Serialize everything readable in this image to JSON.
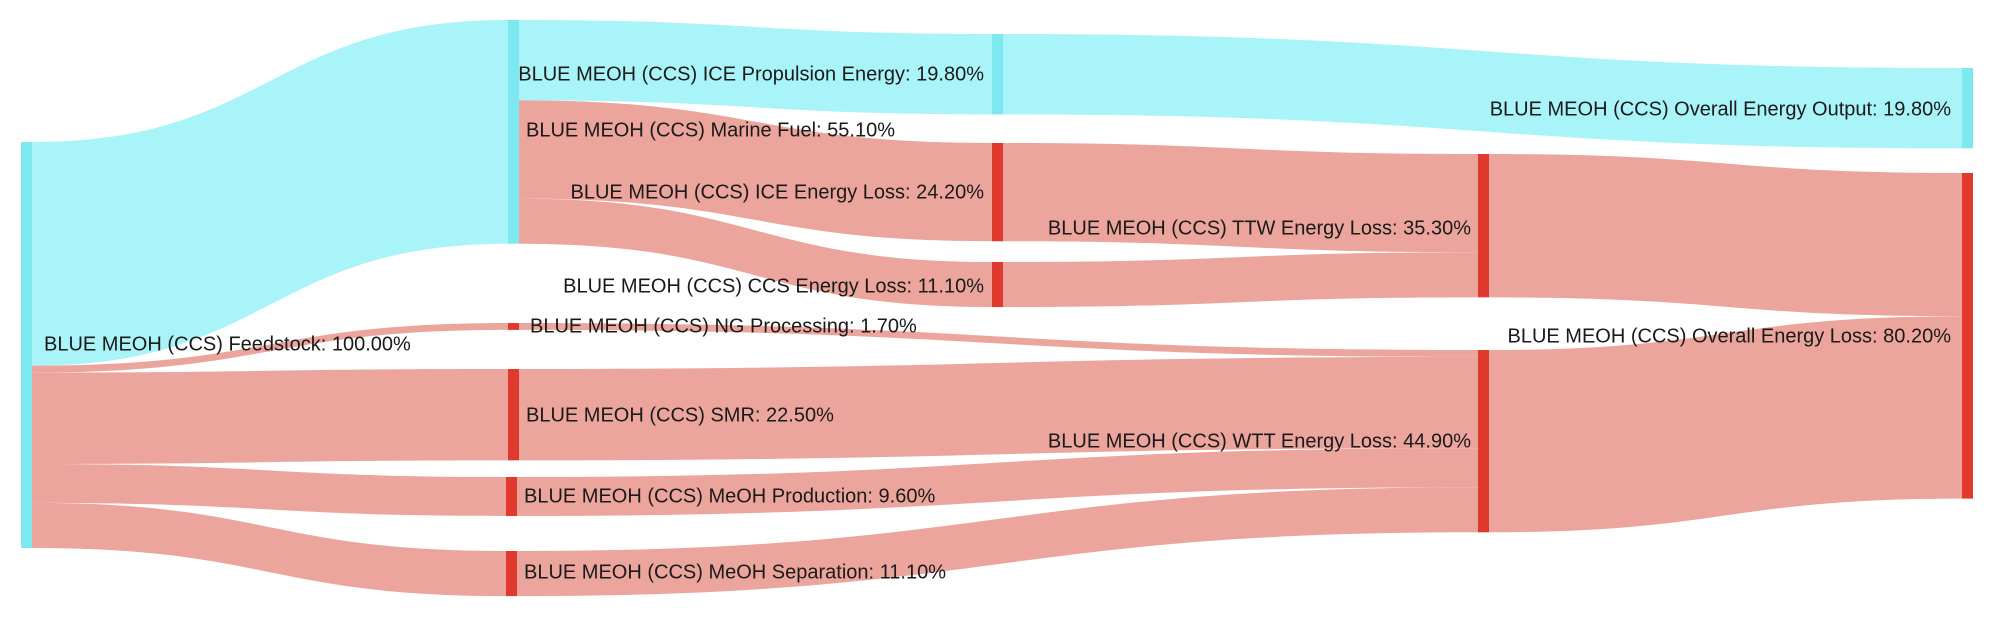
{
  "chart_data": {
    "type": "sankey",
    "title": "",
    "unit": "%",
    "colors": {
      "output_node": "#7ee8f1",
      "output_link": "#a8f4f8",
      "loss_node": "#e03a2e",
      "loss_link": "#eca59d"
    },
    "nodes": [
      {
        "id": "feedstock",
        "name": "BLUE MEOH (CCS) Feedstock",
        "value": 100.0,
        "kind": "output",
        "label": "BLUE MEOH (CCS) Feedstock: 100.00%"
      },
      {
        "id": "marine_fuel",
        "name": "BLUE MEOH (CCS) Marine Fuel",
        "value": 55.1,
        "kind": "output",
        "label": "BLUE MEOH (CCS) Marine Fuel: 55.10%"
      },
      {
        "id": "ccs_loss",
        "name": "BLUE MEOH (CCS) CCS Energy Loss",
        "value": 11.1,
        "kind": "loss",
        "label": "BLUE MEOH (CCS) CCS Energy Loss: 11.10%"
      },
      {
        "id": "ng_processing",
        "name": "BLUE MEOH (CCS) NG Processing",
        "value": 1.7,
        "kind": "loss",
        "label": "BLUE MEOH (CCS) NG Processing: 1.70%"
      },
      {
        "id": "smr",
        "name": "BLUE MEOH (CCS) SMR",
        "value": 22.5,
        "kind": "loss",
        "label": "BLUE MEOH (CCS) SMR: 22.50%"
      },
      {
        "id": "meoh_production",
        "name": "BLUE MEOH (CCS) MeOH Production",
        "value": 9.6,
        "kind": "loss",
        "label": "BLUE MEOH (CCS) MeOH Production: 9.60%"
      },
      {
        "id": "meoh_separation",
        "name": "BLUE MEOH (CCS) MeOH Separation",
        "value": 11.1,
        "kind": "loss",
        "label": "BLUE MEOH (CCS) MeOH Separation: 11.10%"
      },
      {
        "id": "ice_propulsion",
        "name": "BLUE MEOH (CCS) ICE Propulsion Energy",
        "value": 19.8,
        "kind": "output",
        "label": "BLUE MEOH (CCS) ICE Propulsion Energy: 19.80%"
      },
      {
        "id": "ice_loss",
        "name": "BLUE MEOH (CCS) ICE Energy Loss",
        "value": 24.2,
        "kind": "loss",
        "label": "BLUE MEOH (CCS) ICE Energy Loss: 24.20%"
      },
      {
        "id": "ttw_loss",
        "name": "BLUE MEOH (CCS) TTW Energy Loss",
        "value": 35.3,
        "kind": "loss",
        "label": "BLUE MEOH (CCS) TTW Energy Loss: 35.30%"
      },
      {
        "id": "wtt_loss",
        "name": "BLUE MEOH (CCS) WTT Energy Loss",
        "value": 44.9,
        "kind": "loss",
        "label": "BLUE MEOH (CCS) WTT Energy Loss: 44.90%"
      },
      {
        "id": "overall_output",
        "name": "BLUE MEOH (CCS) Overall Energy Output",
        "value": 19.8,
        "kind": "output",
        "label": "BLUE MEOH (CCS) Overall Energy Output: 19.80%"
      },
      {
        "id": "overall_loss",
        "name": "BLUE MEOH (CCS) Overall Energy Loss",
        "value": 80.2,
        "kind": "loss",
        "label": "BLUE MEOH (CCS) Overall Energy Loss: 80.20%"
      }
    ],
    "links": [
      {
        "source": "feedstock",
        "target": "marine_fuel",
        "value": 55.1,
        "kind": "output"
      },
      {
        "source": "feedstock",
        "target": "ng_processing",
        "value": 1.7,
        "kind": "loss"
      },
      {
        "source": "feedstock",
        "target": "smr",
        "value": 22.5,
        "kind": "loss"
      },
      {
        "source": "feedstock",
        "target": "meoh_production",
        "value": 9.6,
        "kind": "loss"
      },
      {
        "source": "feedstock",
        "target": "meoh_separation",
        "value": 11.1,
        "kind": "loss"
      },
      {
        "source": "marine_fuel",
        "target": "ice_propulsion",
        "value": 19.8,
        "kind": "output"
      },
      {
        "source": "marine_fuel",
        "target": "ice_loss",
        "value": 24.2,
        "kind": "loss"
      },
      {
        "source": "marine_fuel",
        "target": "ccs_loss",
        "value": 11.1,
        "kind": "loss"
      },
      {
        "source": "ice_propulsion",
        "target": "overall_output",
        "value": 19.8,
        "kind": "output"
      },
      {
        "source": "ice_loss",
        "target": "ttw_loss",
        "value": 24.2,
        "kind": "loss"
      },
      {
        "source": "ccs_loss",
        "target": "ttw_loss",
        "value": 11.1,
        "kind": "loss"
      },
      {
        "source": "ng_processing",
        "target": "wtt_loss",
        "value": 1.7,
        "kind": "loss"
      },
      {
        "source": "smr",
        "target": "wtt_loss",
        "value": 22.5,
        "kind": "loss"
      },
      {
        "source": "meoh_production",
        "target": "wtt_loss",
        "value": 9.6,
        "kind": "loss"
      },
      {
        "source": "meoh_separation",
        "target": "wtt_loss",
        "value": 11.1,
        "kind": "loss"
      },
      {
        "source": "ttw_loss",
        "target": "overall_loss",
        "value": 35.3,
        "kind": "loss"
      },
      {
        "source": "wtt_loss",
        "target": "overall_loss",
        "value": 44.9,
        "kind": "loss"
      }
    ]
  }
}
